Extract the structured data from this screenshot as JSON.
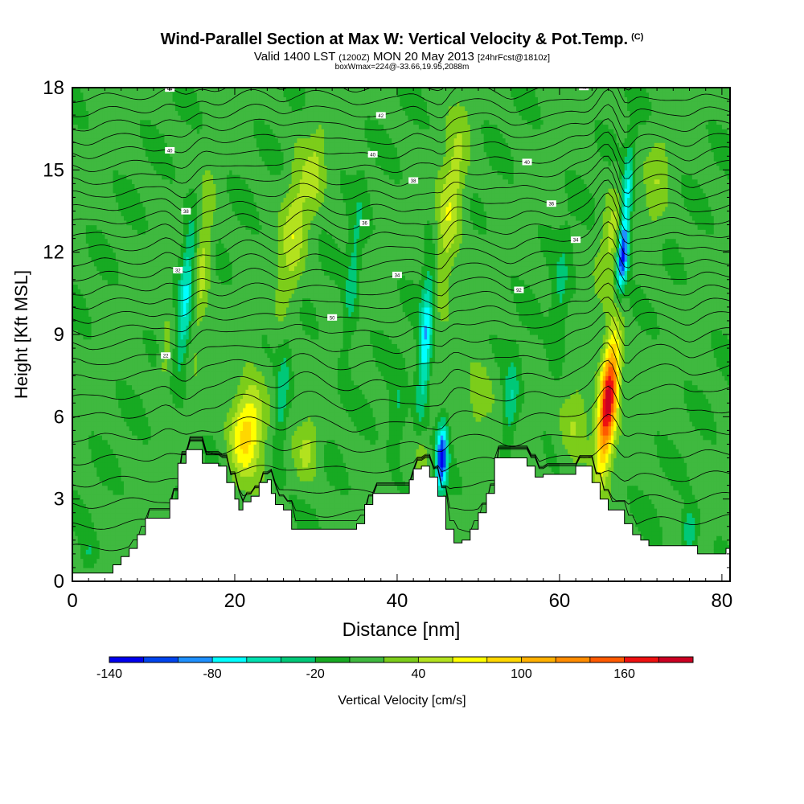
{
  "header": {
    "title": "Wind-Parallel Section at Max W: Vertical Velocity & Pot.Temp.",
    "copyright": "(C)",
    "valid_main": "Valid 1400 LST",
    "valid_utc": "(1200Z)",
    "valid_date": "MON 20 May 2013",
    "forecast_info": "[24hrFcst@1810z]",
    "box_info": "boxWmax=224@-33.66,19.95,2088m"
  },
  "chart_data": {
    "type": "heatmap",
    "xlabel": "Distance [nm]",
    "ylabel": "Height [Kft MSL]",
    "xlim": [
      0,
      81
    ],
    "ylim": [
      0,
      18
    ],
    "xticks": [
      0,
      20,
      40,
      60,
      80
    ],
    "yticks": [
      0,
      3,
      6,
      9,
      12,
      15,
      18
    ],
    "background_value_color": "#3fb93f",
    "colorbar": {
      "label": "Vertical Velocity [cm/s]",
      "tick_labels": [
        "-140",
        "-80",
        "-20",
        "40",
        "100",
        "160"
      ],
      "tick_values": [
        -140,
        -80,
        -20,
        40,
        100,
        160
      ],
      "bins": [
        -140,
        -120,
        -100,
        -80,
        -60,
        -40,
        -20,
        0,
        20,
        40,
        60,
        80,
        100,
        120,
        140,
        160,
        180
      ],
      "colors": [
        "#0000ee",
        "#0044ee",
        "#1e90ff",
        "#00ffff",
        "#00e0b0",
        "#00c878",
        "#17aa22",
        "#3fb93f",
        "#7ccd1a",
        "#b3e21e",
        "#ffff00",
        "#ffd700",
        "#ffb000",
        "#ff8c00",
        "#ff5a00",
        "#ee1010",
        "#cc0022"
      ]
    },
    "terrain_kft": [
      [
        0,
        0.3
      ],
      [
        4,
        0.3
      ],
      [
        5,
        0.6
      ],
      [
        6,
        0.9
      ],
      [
        7,
        1.2
      ],
      [
        8,
        1.7
      ],
      [
        9,
        2.3
      ],
      [
        11.5,
        2.3
      ],
      [
        12,
        3.0
      ],
      [
        13,
        4.3
      ],
      [
        14,
        4.8
      ],
      [
        15,
        4.8
      ],
      [
        16,
        4.3
      ],
      [
        18,
        4.2
      ],
      [
        19,
        3.6
      ],
      [
        20,
        3.0
      ],
      [
        20.5,
        2.6
      ],
      [
        21,
        2.9
      ],
      [
        22,
        3.1
      ],
      [
        23,
        3.6
      ],
      [
        24,
        3.7
      ],
      [
        24.5,
        3.2
      ],
      [
        25,
        2.8
      ],
      [
        26,
        2.6
      ],
      [
        27,
        1.9
      ],
      [
        34,
        1.9
      ],
      [
        35,
        2.1
      ],
      [
        36,
        2.8
      ],
      [
        37,
        3.2
      ],
      [
        41,
        3.2
      ],
      [
        41.5,
        3.7
      ],
      [
        42,
        4.1
      ],
      [
        43,
        4.2
      ],
      [
        44,
        3.8
      ],
      [
        45,
        3.1
      ],
      [
        46,
        1.9
      ],
      [
        47,
        1.4
      ],
      [
        48,
        1.5
      ],
      [
        49,
        1.9
      ],
      [
        50,
        2.5
      ],
      [
        51,
        3.2
      ],
      [
        52,
        4.5
      ],
      [
        55,
        4.5
      ],
      [
        56,
        4.2
      ],
      [
        57,
        3.8
      ],
      [
        58,
        3.9
      ],
      [
        61,
        3.9
      ],
      [
        62,
        4.2
      ],
      [
        63,
        4.2
      ],
      [
        64,
        3.6
      ],
      [
        65,
        3.0
      ],
      [
        66,
        2.6
      ],
      [
        67,
        2.6
      ],
      [
        68,
        2.1
      ],
      [
        69,
        1.7
      ],
      [
        70,
        1.5
      ],
      [
        71,
        1.3
      ],
      [
        76,
        1.3
      ],
      [
        77,
        1.0
      ],
      [
        80,
        1.0
      ],
      [
        80.5,
        1.2
      ],
      [
        81,
        1.2
      ]
    ],
    "updrafts": [
      {
        "x": 21.5,
        "y": 5.5,
        "peak": 90,
        "sx": 2.0,
        "sy": 1.7,
        "tilt": 0.3
      },
      {
        "x": 66.0,
        "y": 6.6,
        "peak": 190,
        "sx": 1.1,
        "sy": 2.3,
        "tilt": 0.3
      },
      {
        "x": 46.5,
        "y": 13.5,
        "peak": 55,
        "sx": 1.6,
        "sy": 3.2,
        "tilt": 0.38
      },
      {
        "x": 27.2,
        "y": 12.5,
        "peak": 45,
        "sx": 1.5,
        "sy": 3.2,
        "tilt": 0.32
      },
      {
        "x": 16.0,
        "y": 11.5,
        "peak": 45,
        "sx": 1.0,
        "sy": 2.8,
        "tilt": 0.28
      },
      {
        "x": 11.5,
        "y": 8.2,
        "peak": 30,
        "sx": 0.8,
        "sy": 1.5,
        "tilt": 0.25
      },
      {
        "x": 29.0,
        "y": 4.8,
        "peak": 40,
        "sx": 1.4,
        "sy": 1.2,
        "tilt": 0.2
      },
      {
        "x": 62.0,
        "y": 5.8,
        "peak": 38,
        "sx": 1.8,
        "sy": 1.6,
        "tilt": 0.25
      },
      {
        "x": 66.5,
        "y": 12.5,
        "peak": 40,
        "sx": 1.5,
        "sy": 2.0,
        "tilt": 0.3
      },
      {
        "x": 43.0,
        "y": 4.5,
        "peak": 35,
        "sx": 0.8,
        "sy": 1.0,
        "tilt": 0.1
      },
      {
        "x": 30.0,
        "y": 15.0,
        "peak": 30,
        "sx": 1.2,
        "sy": 2.0,
        "tilt": 0.3
      },
      {
        "x": 50.0,
        "y": 6.5,
        "peak": 30,
        "sx": 2.0,
        "sy": 1.6,
        "tilt": 0.2
      },
      {
        "x": 72.0,
        "y": 14.5,
        "peak": 25,
        "sx": 1.5,
        "sy": 2.5,
        "tilt": 0.3
      }
    ],
    "downdrafts": [
      {
        "x": 45.5,
        "y": 4.5,
        "peak": -130,
        "sx": 0.7,
        "sy": 1.2,
        "tilt": 0.1
      },
      {
        "x": 43.5,
        "y": 8.8,
        "peak": -85,
        "sx": 0.8,
        "sy": 2.8,
        "tilt": 0.2
      },
      {
        "x": 67.8,
        "y": 11.8,
        "peak": -115,
        "sx": 0.7,
        "sy": 1.2,
        "tilt": 0.28
      },
      {
        "x": 68.2,
        "y": 13.8,
        "peak": -80,
        "sx": 0.7,
        "sy": 2.0,
        "tilt": 0.28
      },
      {
        "x": 14.0,
        "y": 10.5,
        "peak": -65,
        "sx": 0.9,
        "sy": 2.8,
        "tilt": 0.25
      },
      {
        "x": 25.8,
        "y": 6.5,
        "peak": -40,
        "sx": 0.8,
        "sy": 2.5,
        "tilt": 0.2
      },
      {
        "x": 54.0,
        "y": 6.5,
        "peak": -45,
        "sx": 0.9,
        "sy": 1.6,
        "tilt": 0.2
      },
      {
        "x": 76.0,
        "y": 1.8,
        "peak": -55,
        "sx": 0.9,
        "sy": 0.8,
        "tilt": 0.05
      },
      {
        "x": 2.0,
        "y": 1.0,
        "peak": -25,
        "sx": 0.8,
        "sy": 0.6,
        "tilt": 0.0
      },
      {
        "x": 34.5,
        "y": 11.0,
        "peak": -35,
        "sx": 0.9,
        "sy": 3.0,
        "tilt": 0.3
      },
      {
        "x": 60.0,
        "y": 10.0,
        "peak": -30,
        "sx": 1.0,
        "sy": 2.5,
        "tilt": 0.25
      },
      {
        "x": 40.0,
        "y": 6.0,
        "peak": -30,
        "sx": 1.0,
        "sy": 1.6,
        "tilt": 0.1
      }
    ],
    "theta_contours": [
      {
        "base": 1.2,
        "label": "",
        "label_x": 0
      },
      {
        "base": 2.0,
        "label": "",
        "label_x": 0
      },
      {
        "base": 2.8,
        "label": "",
        "label_x": 0
      },
      {
        "base": 3.6,
        "label": "",
        "label_x": 0
      },
      {
        "base": 4.4,
        "label": "",
        "label_x": 0
      },
      {
        "base": 5.2,
        "label": "",
        "label_x": 0
      },
      {
        "base": 6.0,
        "label": "",
        "label_x": 0
      },
      {
        "base": 6.7,
        "label": "",
        "label_x": 0
      },
      {
        "base": 7.4,
        "label": "",
        "label_x": 0
      },
      {
        "base": 8.0,
        "label": "22",
        "label_x": 11.5
      },
      {
        "base": 8.6,
        "label": "",
        "label_x": 0
      },
      {
        "base": 9.1,
        "label": "50",
        "label_x": 32
      },
      {
        "base": 9.6,
        "label": "",
        "label_x": 0
      },
      {
        "base": 10.1,
        "label": "92",
        "label_x": 55
      },
      {
        "base": 10.6,
        "label": "34",
        "label_x": 40
      },
      {
        "base": 11.1,
        "label": "32",
        "label_x": 13
      },
      {
        "base": 11.6,
        "label": "34",
        "label_x": 62
      },
      {
        "base": 12.1,
        "label": "",
        "label_x": 0
      },
      {
        "base": 12.6,
        "label": "36",
        "label_x": 36
      },
      {
        "base": 13.1,
        "label": "36",
        "label_x": 59
      },
      {
        "base": 13.6,
        "label": "38",
        "label_x": 14
      },
      {
        "base": 14.1,
        "label": "38",
        "label_x": 42
      },
      {
        "base": 14.6,
        "label": "40",
        "label_x": 56
      },
      {
        "base": 15.1,
        "label": "40",
        "label_x": 37
      },
      {
        "base": 15.6,
        "label": "40",
        "label_x": 12
      },
      {
        "base": 16.1,
        "label": "",
        "label_x": 0
      },
      {
        "base": 16.6,
        "label": "42",
        "label_x": 38
      },
      {
        "base": 17.1,
        "label": "46",
        "label_x": 63
      },
      {
        "base": 17.6,
        "label": "44",
        "label_x": 12
      },
      {
        "base": 18.1,
        "label": "46",
        "label_x": 38
      }
    ]
  }
}
